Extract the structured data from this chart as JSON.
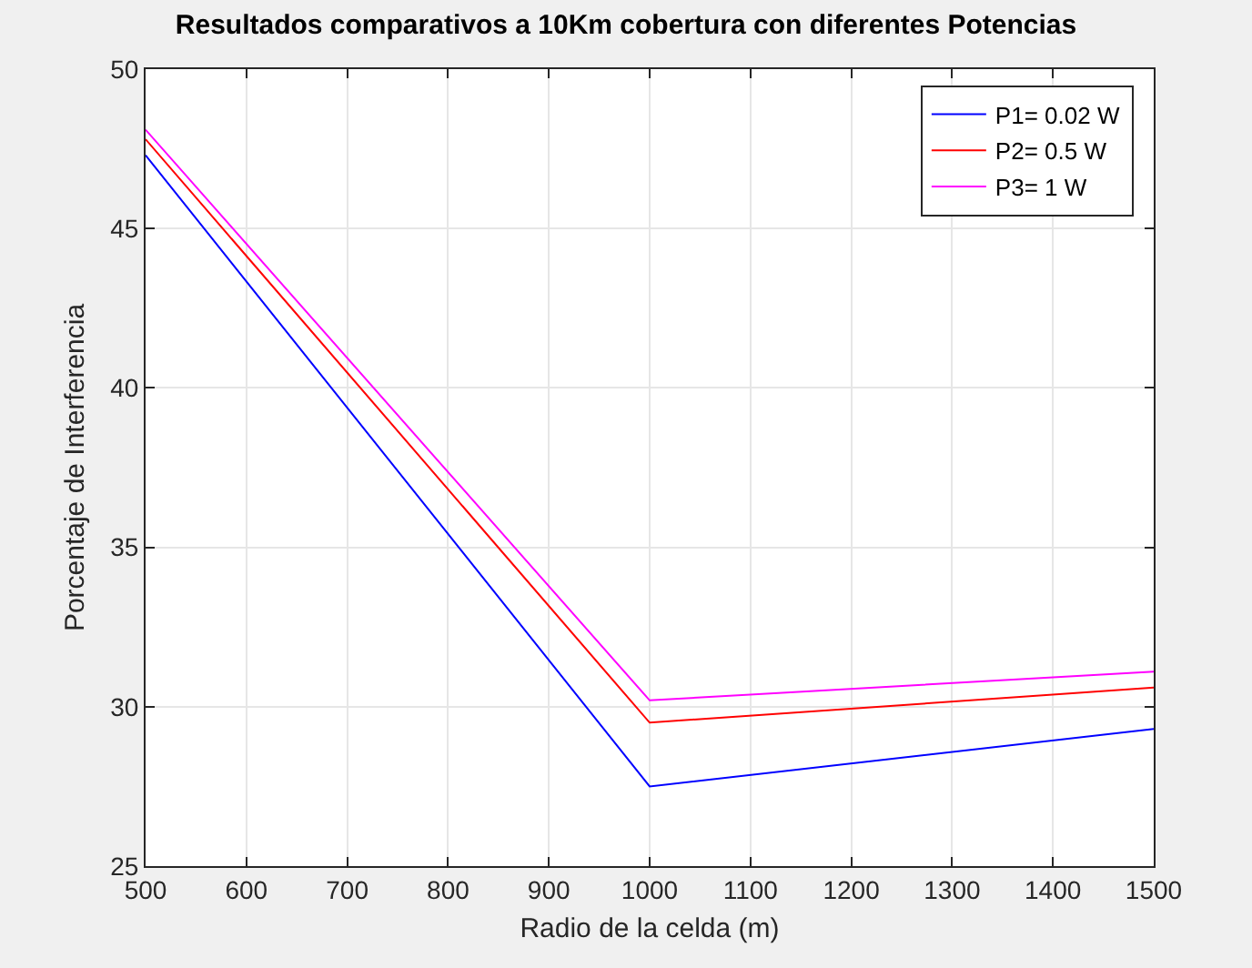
{
  "chart_data": {
    "type": "line",
    "title": "Resultados comparativos a 10Km cobertura con diferentes Potencias",
    "xlabel": "Radio de la celda (m)",
    "ylabel": "Porcentaje de Interferencia",
    "x": [
      500,
      1000,
      1500
    ],
    "series": [
      {
        "name": "P1= 0.02 W",
        "color": "#0000ff",
        "values": [
          47.3,
          27.5,
          29.3
        ]
      },
      {
        "name": "P2= 0.5 W",
        "color": "#ff0000",
        "values": [
          47.8,
          29.5,
          30.6
        ]
      },
      {
        "name": "P3= 1 W",
        "color": "#ff00ff",
        "values": [
          48.1,
          30.2,
          31.1
        ]
      }
    ],
    "xlim": [
      500,
      1500
    ],
    "xticks": [
      500,
      600,
      700,
      800,
      900,
      1000,
      1100,
      1200,
      1300,
      1400,
      1500
    ],
    "ylim": [
      25,
      50
    ],
    "yticks": [
      25,
      30,
      35,
      40,
      45,
      50
    ],
    "grid": true,
    "legend": "top right",
    "marker": "none",
    "line_style": "solid"
  }
}
